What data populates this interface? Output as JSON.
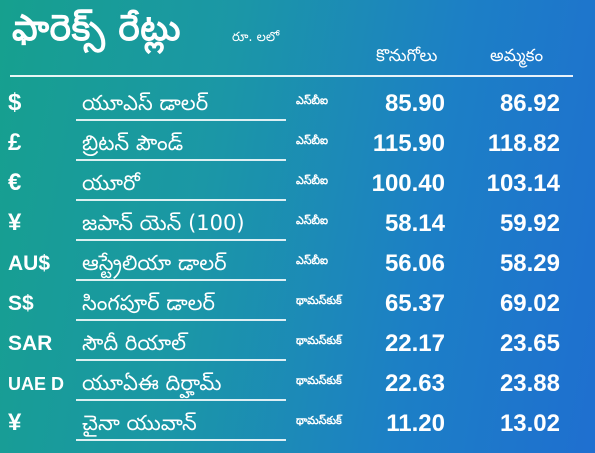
{
  "header": {
    "title": "ఫారెక్స్ రేట్లు",
    "unit": "రూ. లలో",
    "buy_label": "కొనుగోలు",
    "sell_label": "అమ్మకం"
  },
  "rates": [
    {
      "symbol": "$",
      "name": "యూఎస్ డాలర్",
      "source": "ఎస్‌బీఐ",
      "buy": "85.90",
      "sell": "86.92"
    },
    {
      "symbol": "£",
      "name": "బ్రిటన్ పౌండ్",
      "source": "ఎస్‌బీఐ",
      "buy": "115.90",
      "sell": "118.82"
    },
    {
      "symbol": "€",
      "name": "యూరో",
      "source": "ఎస్‌బీఐ",
      "buy": "100.40",
      "sell": "103.14"
    },
    {
      "symbol": "¥",
      "name": "జపాన్ యెన్ (100)",
      "source": "ఎస్‌బీఐ",
      "buy": "58.14",
      "sell": "59.92"
    },
    {
      "symbol": "AU$",
      "name": "ఆస్ట్రేలియా డాలర్",
      "source": "ఎస్‌బీఐ",
      "buy": "56.06",
      "sell": "58.29"
    },
    {
      "symbol": "S$",
      "name": "సింగపూర్ డాలర్",
      "source": "థామస్‌కుక్",
      "buy": "65.37",
      "sell": "69.02"
    },
    {
      "symbol": "SAR",
      "name": "సౌదీ రియాల్",
      "source": "థామస్‌కుక్",
      "buy": "22.17",
      "sell": "23.65"
    },
    {
      "symbol": "UAE D",
      "name": "యూఏఈ దిర్హామ్",
      "source": "థామస్‌కుక్",
      "buy": "22.63",
      "sell": "23.88"
    },
    {
      "symbol": "¥",
      "name": "చైనా యువాన్",
      "source": "థామస్‌కుక్",
      "buy": "11.20",
      "sell": "13.02"
    }
  ]
}
